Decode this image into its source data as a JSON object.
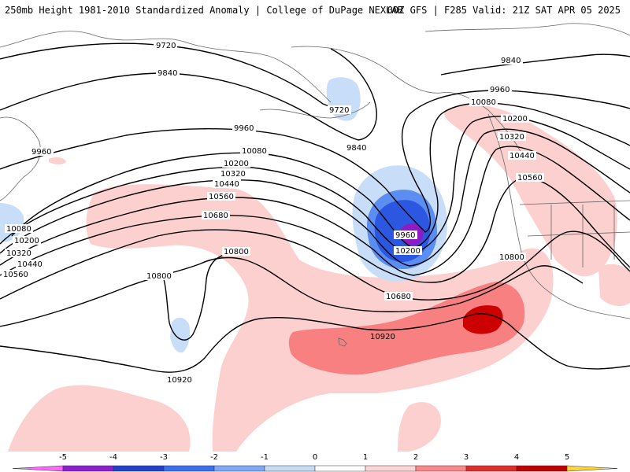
{
  "header": {
    "left": "250mb Height 1981-2010 Standardized Anomaly | College of DuPage NEXLAB",
    "right": "00Z GFS | F285 Valid: 21Z SAT APR 05 2025"
  },
  "contour_labels": [
    "9720",
    "9840",
    "9960",
    "10080",
    "10200",
    "10320",
    "10440",
    "10560",
    "10680",
    "10800",
    "10920"
  ],
  "colorbar": {
    "ticks": [
      "-5",
      "-4",
      "-3",
      "-2",
      "-1",
      "0",
      "1",
      "2",
      "3",
      "4",
      "5"
    ],
    "colors": [
      "#ff66ff",
      "#8a1fd0",
      "#1f3fcc",
      "#3a6ff0",
      "#7fa8f5",
      "#c5dcf8",
      "#ffffff",
      "#fdd5d5",
      "#f98888",
      "#e02b2b",
      "#c00000",
      "#f59d00",
      "#ffd43b"
    ]
  },
  "anomaly_colors": {
    "light_pink": "#fdd0d0",
    "salmon": "#f88080",
    "dark_red": "#cc0000",
    "light_blue": "#c8def8",
    "mid_blue": "#5c8ef2",
    "blue": "#2c57e0",
    "purple": "#8c1cc4"
  }
}
